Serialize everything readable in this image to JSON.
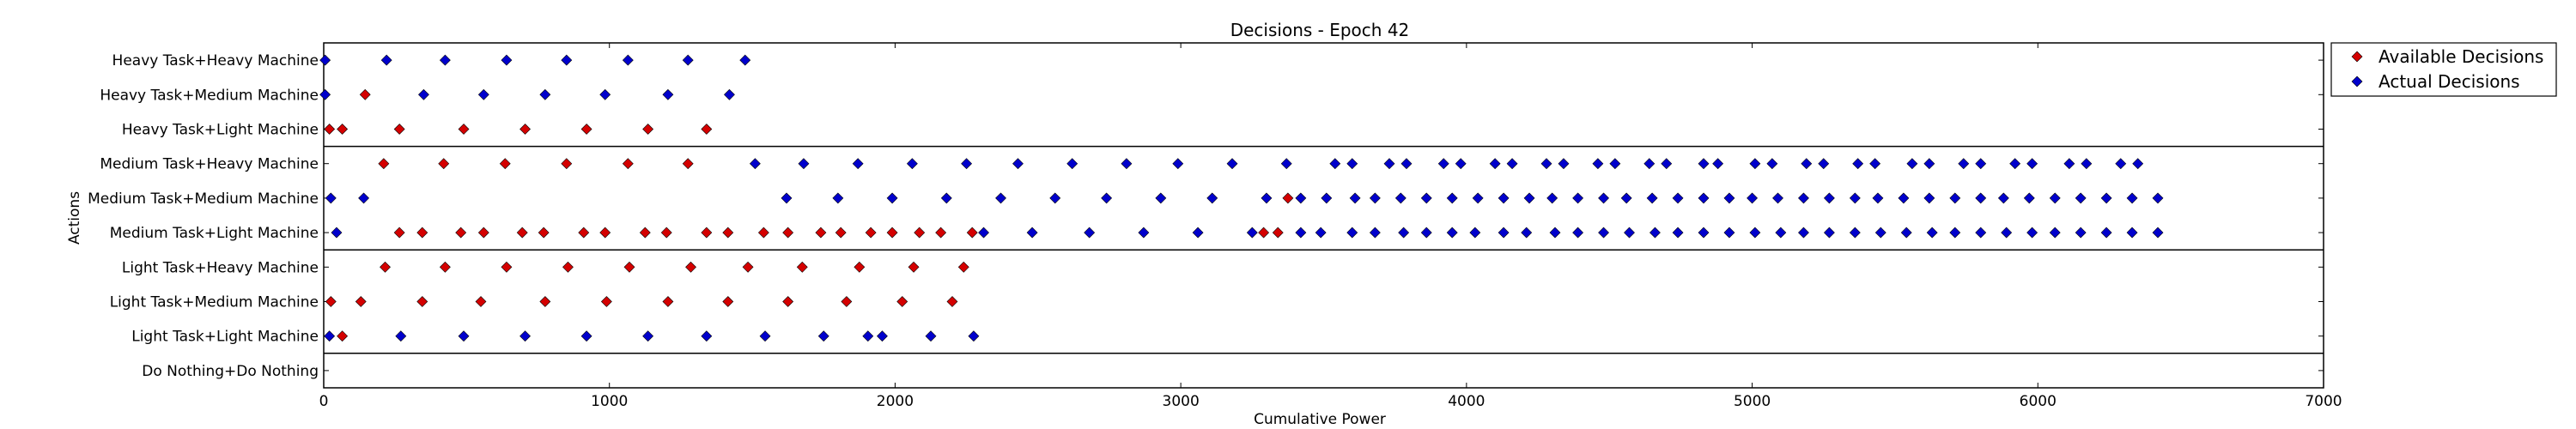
{
  "chart_data": {
    "type": "scatter",
    "title": "Decisions - Epoch 42",
    "xlabel": "Cumulative Power",
    "ylabel": "Actions",
    "xlim": [
      0,
      7000
    ],
    "xticks": [
      "0",
      "1000",
      "2000",
      "3000",
      "4000",
      "5000",
      "6000",
      "7000"
    ],
    "categories": [
      "Heavy Task+Heavy Machine",
      "Heavy Task+Medium Machine",
      "Heavy Task+Light Machine",
      "Medium Task+Heavy Machine",
      "Medium Task+Medium Machine",
      "Medium Task+Light Machine",
      "Light Task+Heavy Machine",
      "Light Task+Medium Machine",
      "Light Task+Light Machine",
      "Do Nothing+Do Nothing"
    ],
    "group_separators_after": [
      2,
      5,
      8
    ],
    "legend_position": "outside right",
    "series": [
      {
        "name": "Available Decisions",
        "color": "#d40000",
        "marker": "diamond",
        "points": [
          {
            "row": 1,
            "x": [
              145
            ]
          },
          {
            "row": 2,
            "x": [
              20,
              65,
              265,
              490,
              705,
              920,
              1135,
              1340
            ]
          },
          {
            "row": 3,
            "x": [
              210,
              420,
              635,
              850,
              1065,
              1275
            ]
          },
          {
            "row": 4,
            "x": [
              3375
            ]
          },
          {
            "row": 5,
            "x": [
              265,
              345,
              480,
              560,
              695,
              770,
              910,
              985,
              1125,
              1200,
              1340,
              1415,
              1540,
              1625,
              1740,
              1810,
              1915,
              1990,
              2085,
              2160,
              2270,
              3290,
              3340
            ]
          },
          {
            "row": 6,
            "x": [
              215,
              425,
              640,
              855,
              1070,
              1285,
              1485,
              1675,
              1875,
              2065,
              2240
            ]
          },
          {
            "row": 7,
            "x": [
              25,
              130,
              345,
              550,
              775,
              990,
              1205,
              1415,
              1625,
              1830,
              2025,
              2200
            ]
          },
          {
            "row": 8,
            "x": [
              65
            ]
          }
        ]
      },
      {
        "name": "Actual Decisions",
        "color": "#0000cc",
        "marker": "diamond",
        "points": [
          {
            "row": 0,
            "x": [
              5,
              220,
              425,
              640,
              850,
              1065,
              1275,
              1475
            ]
          },
          {
            "row": 1,
            "x": [
              5,
              350,
              560,
              775,
              985,
              1205,
              1420
            ]
          },
          {
            "row": 2,
            "x": []
          },
          {
            "row": 3,
            "x": [
              1510,
              1680,
              1870,
              2060,
              2250,
              2430,
              2620,
              2810,
              2990,
              3180,
              3370,
              3540,
              3600,
              3730,
              3790,
              3920,
              3980,
              4100,
              4160,
              4280,
              4340,
              4460,
              4520,
              4640,
              4700,
              4830,
              4880,
              5010,
              5070,
              5190,
              5250,
              5370,
              5430,
              5560,
              5620,
              5740,
              5800,
              5920,
              5980,
              6110,
              6170,
              6290,
              6350
            ]
          },
          {
            "row": 4,
            "x": [
              25,
              140,
              1620,
              1800,
              1990,
              2180,
              2370,
              2560,
              2740,
              2930,
              3110,
              3300,
              3420,
              3510,
              3610,
              3680,
              3770,
              3860,
              3950,
              4040,
              4130,
              4220,
              4300,
              4390,
              4480,
              4560,
              4650,
              4740,
              4830,
              4920,
              5000,
              5090,
              5180,
              5270,
              5360,
              5440,
              5530,
              5620,
              5710,
              5800,
              5880,
              5970,
              6060,
              6150,
              6240,
              6330,
              6420
            ]
          },
          {
            "row": 5,
            "x": [
              45,
              2310,
              2480,
              2680,
              2870,
              3060,
              3250,
              3420,
              3490,
              3600,
              3680,
              3780,
              3860,
              3950,
              4030,
              4130,
              4210,
              4310,
              4390,
              4480,
              4570,
              4660,
              4740,
              4830,
              4920,
              5010,
              5100,
              5180,
              5270,
              5360,
              5450,
              5540,
              5630,
              5710,
              5800,
              5890,
              5980,
              6060,
              6150,
              6240,
              6330,
              6420
            ]
          },
          {
            "row": 6,
            "x": []
          },
          {
            "row": 7,
            "x": []
          },
          {
            "row": 8,
            "x": [
              20,
              270,
              490,
              705,
              920,
              1135,
              1340,
              1545,
              1750,
              1905,
              1955,
              2125,
              2275
            ]
          },
          {
            "row": 9,
            "x": []
          }
        ]
      }
    ]
  }
}
